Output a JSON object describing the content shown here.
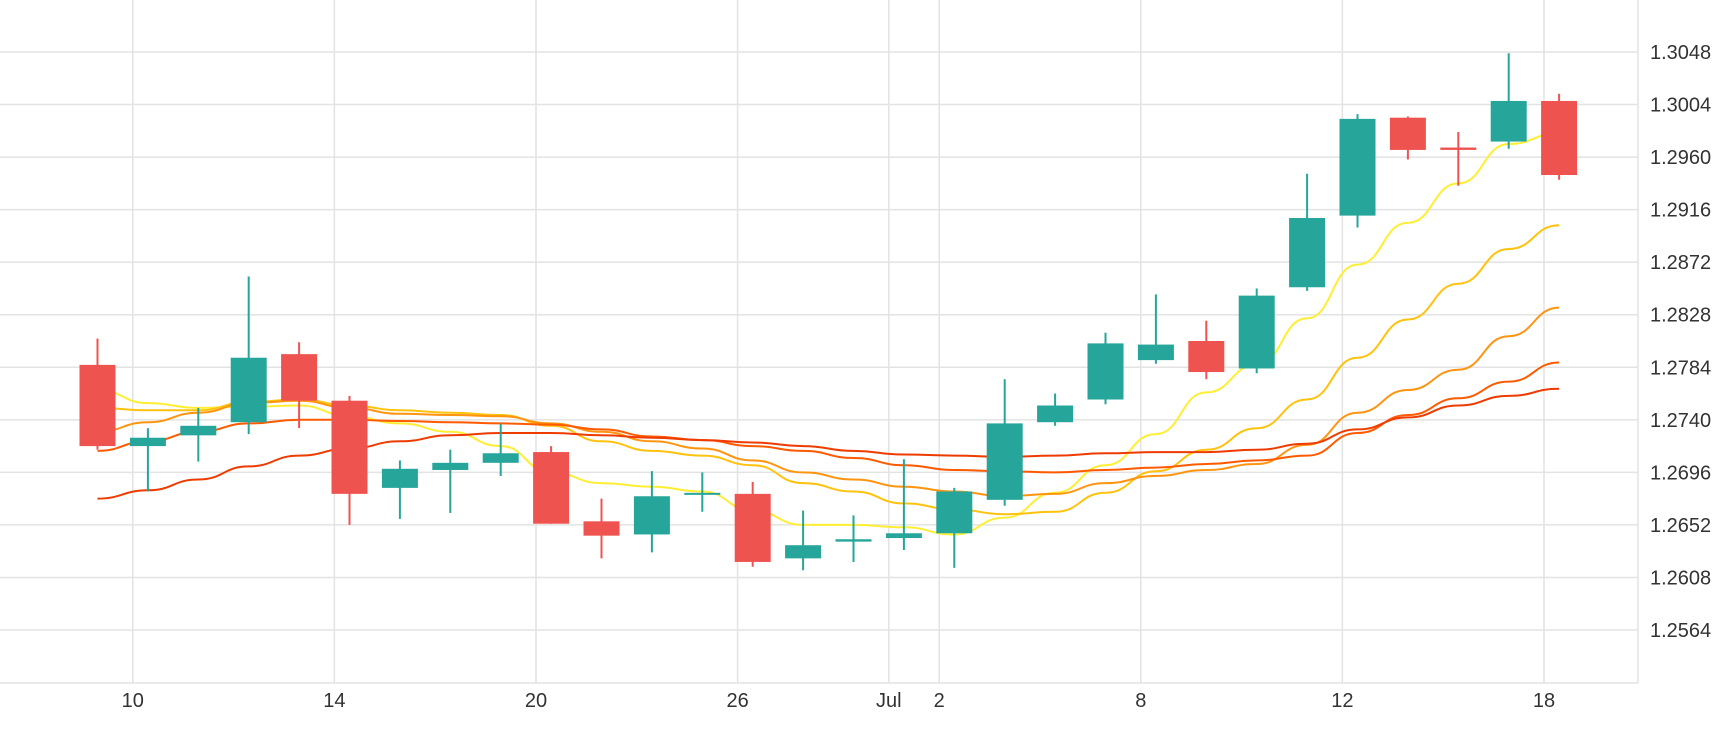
{
  "chart_data": {
    "type": "candlestick",
    "x_tick_labels": [
      "10",
      "14",
      "20",
      "26",
      "Jul",
      "2",
      "8",
      "12",
      "18"
    ],
    "y_tick_labels": [
      "1.3048",
      "1.3004",
      "1.2960",
      "1.2916",
      "1.2872",
      "1.2828",
      "1.2784",
      "1.2740",
      "1.2696",
      "1.2652",
      "1.2608",
      "1.2564"
    ],
    "y_axis_side": "right",
    "ylim": [
      1.252,
      1.308
    ],
    "grid": true,
    "legend": "none",
    "up_color": "#26a69a",
    "down_color": "#ef5350",
    "candles": [
      {
        "x": "Jun 9",
        "open": 1.2786,
        "high": 1.2808,
        "low": 1.2715,
        "close": 1.2718
      },
      {
        "x": "Jun 10",
        "open": 1.2718,
        "high": 1.2733,
        "low": 1.268,
        "close": 1.2725
      },
      {
        "x": "Jun 11",
        "open": 1.2727,
        "high": 1.275,
        "low": 1.2705,
        "close": 1.2735
      },
      {
        "x": "Jun 12",
        "open": 1.2738,
        "high": 1.286,
        "low": 1.2728,
        "close": 1.2792
      },
      {
        "x": "Jun 13",
        "open": 1.2795,
        "high": 1.2805,
        "low": 1.2733,
        "close": 1.2756
      },
      {
        "x": "Jun 14",
        "open": 1.2756,
        "high": 1.276,
        "low": 1.2652,
        "close": 1.2678
      },
      {
        "x": "Jun 17",
        "open": 1.2683,
        "high": 1.2706,
        "low": 1.2657,
        "close": 1.2699
      },
      {
        "x": "Jun 18",
        "open": 1.2698,
        "high": 1.2715,
        "low": 1.2662,
        "close": 1.2704
      },
      {
        "x": "Jun 19",
        "open": 1.2704,
        "high": 1.2737,
        "low": 1.2693,
        "close": 1.2712
      },
      {
        "x": "Jun 20",
        "open": 1.2713,
        "high": 1.2718,
        "low": 1.2653,
        "close": 1.2653
      },
      {
        "x": "Jun 21",
        "open": 1.2655,
        "high": 1.2674,
        "low": 1.2624,
        "close": 1.2643
      },
      {
        "x": "Jun 24",
        "open": 1.2644,
        "high": 1.2697,
        "low": 1.2629,
        "close": 1.2676
      },
      {
        "x": "Jun 25",
        "open": 1.2678,
        "high": 1.2696,
        "low": 1.2663,
        "close": 1.2678
      },
      {
        "x": "Jun 26",
        "open": 1.2678,
        "high": 1.2688,
        "low": 1.2617,
        "close": 1.2621
      },
      {
        "x": "Jun 27",
        "open": 1.2624,
        "high": 1.2664,
        "low": 1.2614,
        "close": 1.2635
      },
      {
        "x": "Jun 28",
        "open": 1.2638,
        "high": 1.266,
        "low": 1.2621,
        "close": 1.264
      },
      {
        "x": "Jul 1",
        "open": 1.2641,
        "high": 1.2707,
        "low": 1.2631,
        "close": 1.2645
      },
      {
        "x": "Jul 2",
        "open": 1.2645,
        "high": 1.2683,
        "low": 1.2616,
        "close": 1.268
      },
      {
        "x": "Jul 3",
        "open": 1.2673,
        "high": 1.2774,
        "low": 1.2668,
        "close": 1.2737
      },
      {
        "x": "Jul 4",
        "open": 1.2738,
        "high": 1.2762,
        "low": 1.2735,
        "close": 1.2752
      },
      {
        "x": "Jul 5",
        "open": 1.2757,
        "high": 1.2813,
        "low": 1.2753,
        "close": 1.2804
      },
      {
        "x": "Jul 8",
        "open": 1.279,
        "high": 1.2845,
        "low": 1.2787,
        "close": 1.2803
      },
      {
        "x": "Jul 9",
        "open": 1.2806,
        "high": 1.2823,
        "low": 1.2774,
        "close": 1.278
      },
      {
        "x": "Jul 10",
        "open": 1.2783,
        "high": 1.285,
        "low": 1.2779,
        "close": 1.2844
      },
      {
        "x": "Jul 11",
        "open": 1.2851,
        "high": 1.2946,
        "low": 1.2848,
        "close": 1.2909
      },
      {
        "x": "Jul 12",
        "open": 1.2911,
        "high": 1.2996,
        "low": 1.2901,
        "close": 1.2992
      },
      {
        "x": "Jul 15",
        "open": 1.2993,
        "high": 1.2994,
        "low": 1.2958,
        "close": 1.2966
      },
      {
        "x": "Jul 16",
        "open": 1.2968,
        "high": 1.2981,
        "low": 1.2936,
        "close": 1.2966
      },
      {
        "x": "Jul 17",
        "open": 1.2973,
        "high": 1.3047,
        "low": 1.2967,
        "close": 1.3007
      },
      {
        "x": "Jul 18",
        "open": 1.3007,
        "high": 1.3013,
        "low": 1.2941,
        "close": 1.2945
      }
    ],
    "overlay_lines": [
      {
        "color": "#ffee33",
        "start_index": 0,
        "values": [
          1.2765,
          1.2754,
          1.275,
          1.2751,
          1.2752,
          1.2743,
          1.2737,
          1.273,
          1.2718,
          1.2696,
          1.2687,
          1.2684,
          1.268,
          1.2664,
          1.2652,
          1.2652,
          1.265,
          1.2644,
          1.2658,
          1.2679,
          1.2702,
          1.2728,
          1.2763,
          1.2786,
          1.2825,
          1.287,
          1.2905,
          1.2938,
          1.2971,
          1.298
        ]
      },
      {
        "color": "#ffc20e",
        "start_index": 0,
        "values": [
          1.275,
          1.2748,
          1.2748,
          1.2755,
          1.2757,
          1.2752,
          1.2748,
          1.2746,
          1.2744,
          1.2735,
          1.2722,
          1.2714,
          1.271,
          1.2702,
          1.2687,
          1.268,
          1.267,
          1.2665,
          1.2661,
          1.2663,
          1.2679,
          1.2697,
          1.2715,
          1.2733,
          1.2757,
          1.2792,
          1.2824,
          1.2854,
          1.2883,
          1.2903
        ]
      },
      {
        "color": "#ff9410",
        "start_index": 0,
        "values": [
          1.273,
          1.2738,
          1.2746,
          1.2754,
          1.2756,
          1.275,
          1.2745,
          1.2744,
          1.2743,
          1.2737,
          1.273,
          1.2722,
          1.2716,
          1.2706,
          1.2696,
          1.269,
          1.2684,
          1.268,
          1.2676,
          1.2678,
          1.2687,
          1.2693,
          1.2698,
          1.2703,
          1.2719,
          1.2746,
          1.2765,
          1.2782,
          1.281,
          1.2834
        ]
      },
      {
        "color": "#ff5a00",
        "start_index": 0,
        "values": [
          1.2714,
          1.2722,
          1.273,
          1.2737,
          1.274,
          1.274,
          1.2739,
          1.2738,
          1.2737,
          1.2736,
          1.2732,
          1.2726,
          1.2723,
          1.2718,
          1.2714,
          1.2708,
          1.2702,
          1.2698,
          1.2697,
          1.2696,
          1.2698,
          1.27,
          1.2703,
          1.2706,
          1.271,
          1.2729,
          1.2744,
          1.2758,
          1.2772,
          1.2788
        ]
      },
      {
        "color": "#ee3b00",
        "start_index": 0,
        "values": [
          1.2674,
          1.2681,
          1.269,
          1.2701,
          1.271,
          1.2716,
          1.2722,
          1.2727,
          1.2729,
          1.2729,
          1.2727,
          1.2725,
          1.2723,
          1.2721,
          1.2718,
          1.2714,
          1.2711,
          1.271,
          1.2709,
          1.271,
          1.2712,
          1.2713,
          1.2713,
          1.2715,
          1.272,
          1.2732,
          1.2742,
          1.2752,
          1.276,
          1.2766
        ]
      }
    ]
  }
}
